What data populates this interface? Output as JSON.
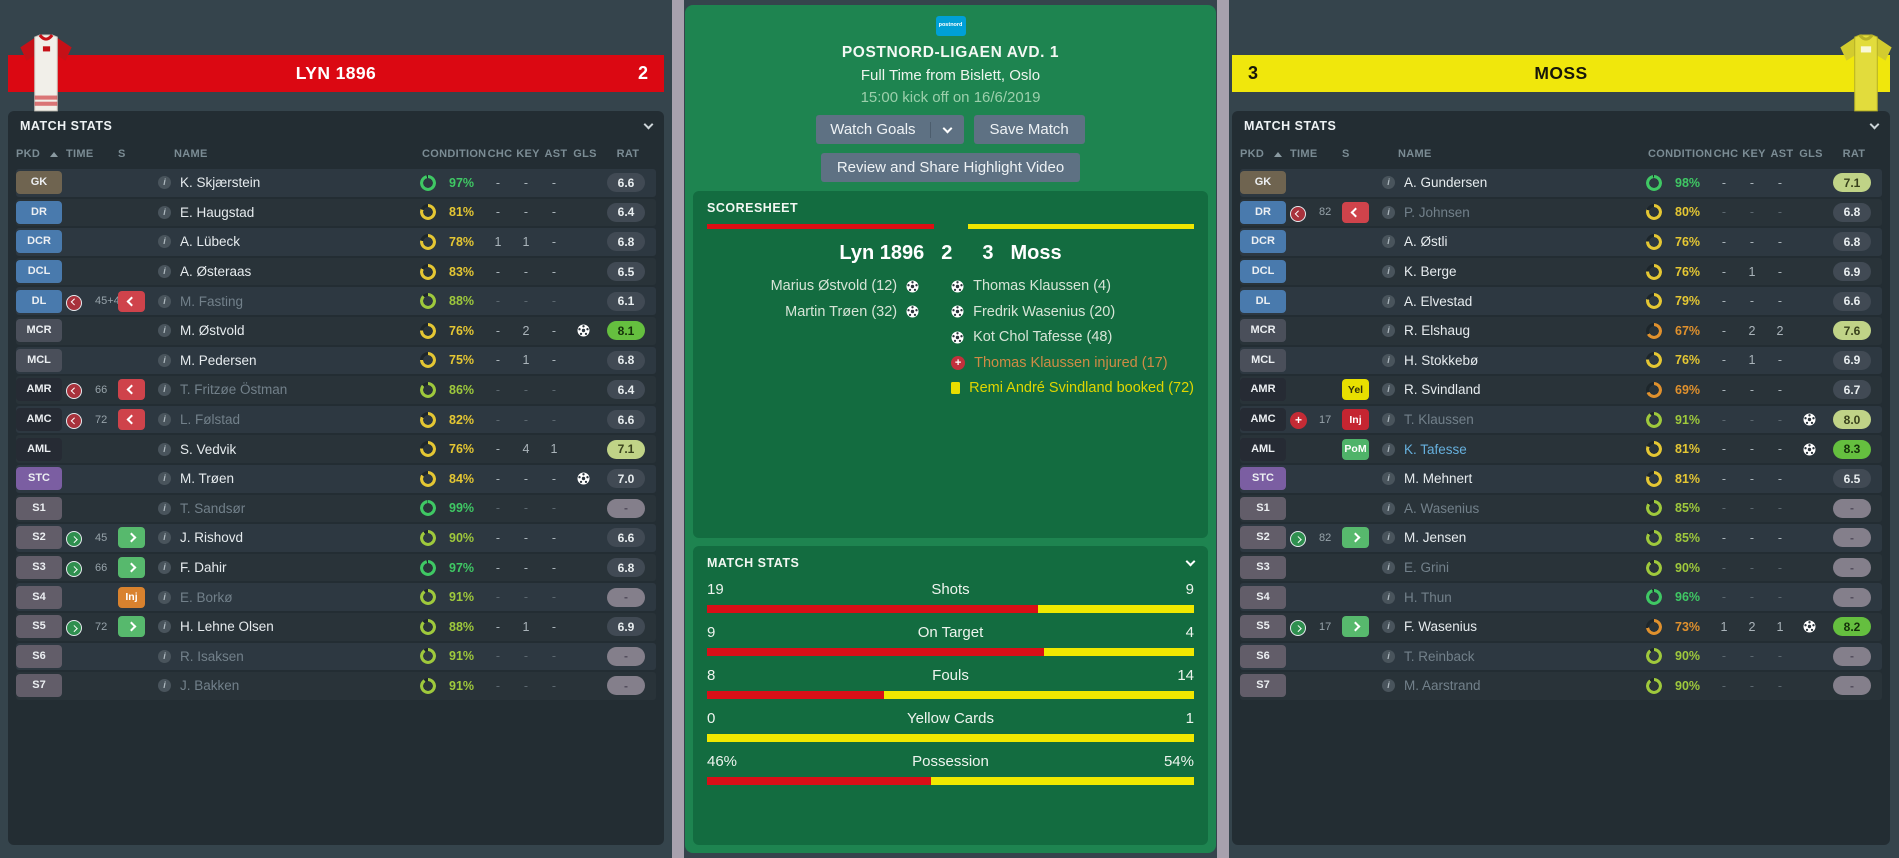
{
  "columns": [
    "PKD",
    "TIME",
    "S",
    "NAME",
    "CONDITION",
    "CHC",
    "KEY",
    "AST",
    "GLS",
    "RAT"
  ],
  "left_team": {
    "name": "LYN 1896",
    "score": "2",
    "panel_title": "MATCH STATS",
    "bar_color": "#db0812",
    "players": [
      {
        "pos": "GK",
        "posType": "gk",
        "time": "",
        "timeIcon": "",
        "sBadge": "",
        "name": "K. Skjærstein",
        "nameStyle": "n",
        "cond": 97,
        "condLevel": "green",
        "chc": "-",
        "key": "-",
        "ast": "-",
        "goal": false,
        "rating": "6.6",
        "ratingStyle": "gray"
      },
      {
        "pos": "DR",
        "posType": "d",
        "time": "",
        "timeIcon": "",
        "sBadge": "",
        "name": "E. Haugstad",
        "nameStyle": "n",
        "cond": 81,
        "condLevel": "yellow",
        "chc": "-",
        "key": "-",
        "ast": "-",
        "goal": false,
        "rating": "6.4",
        "ratingStyle": "gray"
      },
      {
        "pos": "DCR",
        "posType": "d",
        "time": "",
        "timeIcon": "",
        "sBadge": "",
        "name": "A. Lübeck",
        "nameStyle": "n",
        "cond": 78,
        "condLevel": "yellow",
        "chc": "1",
        "key": "1",
        "ast": "-",
        "goal": false,
        "rating": "6.8",
        "ratingStyle": "gray"
      },
      {
        "pos": "DCL",
        "posType": "d",
        "time": "",
        "timeIcon": "",
        "sBadge": "",
        "name": "A. Østeraas",
        "nameStyle": "n",
        "cond": 83,
        "condLevel": "yellow",
        "chc": "-",
        "key": "-",
        "ast": "-",
        "goal": false,
        "rating": "6.5",
        "ratingStyle": "gray"
      },
      {
        "pos": "DL",
        "posType": "d",
        "time": "45+4",
        "timeIcon": "off",
        "sBadge": "off",
        "name": "M. Fasting",
        "nameStyle": "f",
        "cond": 88,
        "condLevel": "yg",
        "chc": "-",
        "key": "-",
        "ast": "-",
        "goal": false,
        "rating": "6.1",
        "ratingStyle": "gray"
      },
      {
        "pos": "MCR",
        "posType": "m",
        "time": "",
        "timeIcon": "",
        "sBadge": "",
        "name": "M. Østvold",
        "nameStyle": "n",
        "cond": 76,
        "condLevel": "yellow",
        "chc": "-",
        "key": "2",
        "ast": "-",
        "goal": true,
        "rating": "8.1",
        "ratingStyle": "bright"
      },
      {
        "pos": "MCL",
        "posType": "m",
        "time": "",
        "timeIcon": "",
        "sBadge": "",
        "name": "M. Pedersen",
        "nameStyle": "n",
        "cond": 75,
        "condLevel": "yellow",
        "chc": "-",
        "key": "1",
        "ast": "-",
        "goal": false,
        "rating": "6.8",
        "ratingStyle": "gray"
      },
      {
        "pos": "AMR",
        "posType": "am",
        "time": "66",
        "timeIcon": "off",
        "sBadge": "off",
        "name": "T. Fritzøe Östman",
        "nameStyle": "f",
        "cond": 86,
        "condLevel": "yg",
        "chc": "-",
        "key": "-",
        "ast": "-",
        "goal": false,
        "rating": "6.4",
        "ratingStyle": "gray"
      },
      {
        "pos": "AMC",
        "posType": "am",
        "time": "72",
        "timeIcon": "off",
        "sBadge": "off",
        "name": "L. Følstad",
        "nameStyle": "f",
        "cond": 82,
        "condLevel": "yellow",
        "chc": "-",
        "key": "-",
        "ast": "-",
        "goal": false,
        "rating": "6.6",
        "ratingStyle": "gray"
      },
      {
        "pos": "AML",
        "posType": "am",
        "time": "",
        "timeIcon": "",
        "sBadge": "",
        "name": "S. Vedvik",
        "nameStyle": "n",
        "cond": 76,
        "condLevel": "yellow",
        "chc": "-",
        "key": "4",
        "ast": "1",
        "goal": false,
        "rating": "7.1",
        "ratingStyle": "pale"
      },
      {
        "pos": "STC",
        "posType": "st",
        "time": "",
        "timeIcon": "",
        "sBadge": "",
        "name": "M. Trøen",
        "nameStyle": "n",
        "cond": 84,
        "condLevel": "yellow",
        "chc": "-",
        "key": "-",
        "ast": "-",
        "goal": true,
        "rating": "7.0",
        "ratingStyle": "gray"
      },
      {
        "pos": "S1",
        "posType": "sub",
        "time": "",
        "timeIcon": "",
        "sBadge": "",
        "name": "T. Sandsør",
        "nameStyle": "f",
        "cond": 99,
        "condLevel": "green",
        "chc": "-",
        "key": "-",
        "ast": "-",
        "goal": false,
        "rating": "-",
        "ratingStyle": "none"
      },
      {
        "pos": "S2",
        "posType": "sub",
        "time": "45",
        "timeIcon": "on",
        "sBadge": "on",
        "name": "J. Rishovd",
        "nameStyle": "n",
        "cond": 90,
        "condLevel": "yg",
        "chc": "-",
        "key": "-",
        "ast": "-",
        "goal": false,
        "rating": "6.6",
        "ratingStyle": "gray"
      },
      {
        "pos": "S3",
        "posType": "sub",
        "time": "66",
        "timeIcon": "on",
        "sBadge": "on",
        "name": "F. Dahir",
        "nameStyle": "n",
        "cond": 97,
        "condLevel": "green",
        "chc": "-",
        "key": "-",
        "ast": "-",
        "goal": false,
        "rating": "6.8",
        "ratingStyle": "gray"
      },
      {
        "pos": "S4",
        "posType": "sub",
        "time": "",
        "timeIcon": "",
        "sBadge": "injO",
        "name": "E. Borkø",
        "nameStyle": "f",
        "cond": 91,
        "condLevel": "yg",
        "chc": "-",
        "key": "-",
        "ast": "-",
        "goal": false,
        "rating": "-",
        "ratingStyle": "none"
      },
      {
        "pos": "S5",
        "posType": "sub",
        "time": "72",
        "timeIcon": "on",
        "sBadge": "on",
        "name": "H. Lehne Olsen",
        "nameStyle": "n",
        "cond": 88,
        "condLevel": "yg",
        "chc": "-",
        "key": "1",
        "ast": "-",
        "goal": false,
        "rating": "6.9",
        "ratingStyle": "gray"
      },
      {
        "pos": "S6",
        "posType": "sub",
        "time": "",
        "timeIcon": "",
        "sBadge": "",
        "name": "R. Isaksen",
        "nameStyle": "f",
        "cond": 91,
        "condLevel": "yg",
        "chc": "-",
        "key": "-",
        "ast": "-",
        "goal": false,
        "rating": "-",
        "ratingStyle": "none"
      },
      {
        "pos": "S7",
        "posType": "sub",
        "time": "",
        "timeIcon": "",
        "sBadge": "",
        "name": "J. Bakken",
        "nameStyle": "f",
        "cond": 91,
        "condLevel": "yg",
        "chc": "-",
        "key": "-",
        "ast": "-",
        "goal": false,
        "rating": "-",
        "ratingStyle": "none"
      }
    ]
  },
  "right_team": {
    "name": "MOSS",
    "score": "3",
    "panel_title": "MATCH STATS",
    "bar_color": "#f0e70c",
    "players": [
      {
        "pos": "GK",
        "posType": "gk",
        "time": "",
        "timeIcon": "",
        "sBadge": "",
        "name": "A. Gundersen",
        "nameStyle": "n",
        "cond": 98,
        "condLevel": "green",
        "chc": "-",
        "key": "-",
        "ast": "-",
        "goal": false,
        "rating": "7.1",
        "ratingStyle": "pale"
      },
      {
        "pos": "DR",
        "posType": "d",
        "time": "82",
        "timeIcon": "off",
        "sBadge": "off",
        "name": "P. Johnsen",
        "nameStyle": "f",
        "cond": 80,
        "condLevel": "yellow",
        "chc": "-",
        "key": "-",
        "ast": "-",
        "goal": false,
        "rating": "6.8",
        "ratingStyle": "gray"
      },
      {
        "pos": "DCR",
        "posType": "d",
        "time": "",
        "timeIcon": "",
        "sBadge": "",
        "name": "A. Østli",
        "nameStyle": "n",
        "cond": 76,
        "condLevel": "yellow",
        "chc": "-",
        "key": "-",
        "ast": "-",
        "goal": false,
        "rating": "6.8",
        "ratingStyle": "gray"
      },
      {
        "pos": "DCL",
        "posType": "d",
        "time": "",
        "timeIcon": "",
        "sBadge": "",
        "name": "K. Berge",
        "nameStyle": "n",
        "cond": 76,
        "condLevel": "yellow",
        "chc": "-",
        "key": "1",
        "ast": "-",
        "goal": false,
        "rating": "6.9",
        "ratingStyle": "gray"
      },
      {
        "pos": "DL",
        "posType": "d",
        "time": "",
        "timeIcon": "",
        "sBadge": "",
        "name": "A. Elvestad",
        "nameStyle": "n",
        "cond": 79,
        "condLevel": "yellow",
        "chc": "-",
        "key": "-",
        "ast": "-",
        "goal": false,
        "rating": "6.6",
        "ratingStyle": "gray"
      },
      {
        "pos": "MCR",
        "posType": "m",
        "time": "",
        "timeIcon": "",
        "sBadge": "",
        "name": "R. Elshaug",
        "nameStyle": "n",
        "cond": 67,
        "condLevel": "orange",
        "chc": "-",
        "key": "2",
        "ast": "2",
        "goal": false,
        "rating": "7.6",
        "ratingStyle": "pale"
      },
      {
        "pos": "MCL",
        "posType": "m",
        "time": "",
        "timeIcon": "",
        "sBadge": "",
        "name": "H. Stokkebø",
        "nameStyle": "n",
        "cond": 76,
        "condLevel": "yellow",
        "chc": "-",
        "key": "1",
        "ast": "-",
        "goal": false,
        "rating": "6.9",
        "ratingStyle": "gray"
      },
      {
        "pos": "AMR",
        "posType": "am",
        "time": "",
        "timeIcon": "",
        "sBadge": "yel",
        "name": "R. Svindland",
        "nameStyle": "n",
        "cond": 69,
        "condLevel": "orange",
        "chc": "-",
        "key": "-",
        "ast": "-",
        "goal": false,
        "rating": "6.7",
        "ratingStyle": "gray"
      },
      {
        "pos": "AMC",
        "posType": "am",
        "time": "17",
        "timeIcon": "inj",
        "sBadge": "injR",
        "name": "T. Klaussen",
        "nameStyle": "f",
        "cond": 91,
        "condLevel": "yg",
        "chc": "-",
        "key": "-",
        "ast": "-",
        "goal": true,
        "rating": "8.0",
        "ratingStyle": "pale"
      },
      {
        "pos": "AML",
        "posType": "am",
        "time": "",
        "timeIcon": "",
        "sBadge": "pom",
        "name": "K. Tafesse",
        "nameStyle": "link",
        "cond": 81,
        "condLevel": "yellow",
        "chc": "-",
        "key": "-",
        "ast": "-",
        "goal": true,
        "rating": "8.3",
        "ratingStyle": "bright"
      },
      {
        "pos": "STC",
        "posType": "st",
        "time": "",
        "timeIcon": "",
        "sBadge": "",
        "name": "M. Mehnert",
        "nameStyle": "n",
        "cond": 81,
        "condLevel": "yellow",
        "chc": "-",
        "key": "-",
        "ast": "-",
        "goal": false,
        "rating": "6.5",
        "ratingStyle": "gray"
      },
      {
        "pos": "S1",
        "posType": "sub",
        "time": "",
        "timeIcon": "",
        "sBadge": "",
        "name": "A. Wasenius",
        "nameStyle": "f",
        "cond": 85,
        "condLevel": "yg",
        "chc": "-",
        "key": "-",
        "ast": "-",
        "goal": false,
        "rating": "-",
        "ratingStyle": "none"
      },
      {
        "pos": "S2",
        "posType": "sub",
        "time": "82",
        "timeIcon": "on",
        "sBadge": "on",
        "name": "M. Jensen",
        "nameStyle": "n",
        "cond": 85,
        "condLevel": "yg",
        "chc": "-",
        "key": "-",
        "ast": "-",
        "goal": false,
        "rating": "-",
        "ratingStyle": "none"
      },
      {
        "pos": "S3",
        "posType": "sub",
        "time": "",
        "timeIcon": "",
        "sBadge": "",
        "name": "E. Grini",
        "nameStyle": "f",
        "cond": 90,
        "condLevel": "yg",
        "chc": "-",
        "key": "-",
        "ast": "-",
        "goal": false,
        "rating": "-",
        "ratingStyle": "none"
      },
      {
        "pos": "S4",
        "posType": "sub",
        "time": "",
        "timeIcon": "",
        "sBadge": "",
        "name": "H. Thun",
        "nameStyle": "f",
        "cond": 96,
        "condLevel": "green",
        "chc": "-",
        "key": "-",
        "ast": "-",
        "goal": false,
        "rating": "-",
        "ratingStyle": "none"
      },
      {
        "pos": "S5",
        "posType": "sub",
        "time": "17",
        "timeIcon": "on",
        "sBadge": "on",
        "name": "F. Wasenius",
        "nameStyle": "n",
        "cond": 73,
        "condLevel": "orange",
        "chc": "1",
        "key": "2",
        "ast": "1",
        "goal": true,
        "rating": "8.2",
        "ratingStyle": "bright"
      },
      {
        "pos": "S6",
        "posType": "sub",
        "time": "",
        "timeIcon": "",
        "sBadge": "",
        "name": "T. Reinback",
        "nameStyle": "f",
        "cond": 90,
        "condLevel": "yg",
        "chc": "-",
        "key": "-",
        "ast": "-",
        "goal": false,
        "rating": "-",
        "ratingStyle": "none"
      },
      {
        "pos": "S7",
        "posType": "sub",
        "time": "",
        "timeIcon": "",
        "sBadge": "",
        "name": "M. Aarstrand",
        "nameStyle": "f",
        "cond": 90,
        "condLevel": "yg",
        "chc": "-",
        "key": "-",
        "ast": "-",
        "goal": false,
        "rating": "-",
        "ratingStyle": "none"
      }
    ]
  },
  "center": {
    "sponsor_logo": "postnord",
    "competition": "POSTNORD-LIGAEN AVD. 1",
    "status": "Full Time from Bislett, Oslo",
    "kickoff": "15:00 kick off on 16/6/2019",
    "buttons": {
      "watch_goals": "Watch Goals",
      "save_match": "Save Match",
      "review": "Review and Share Highlight Video"
    },
    "scoresheet": {
      "title": "SCORESHEET",
      "home_name": "Lyn 1896",
      "home_score": "2",
      "away_score": "3",
      "away_name": "Moss",
      "home_events": [
        {
          "text": "Marius Østvold (12)",
          "type": "goal"
        },
        {
          "text": "Martin Trøen (32)",
          "type": "goal"
        }
      ],
      "away_events": [
        {
          "text": "Thomas Klaussen (4)",
          "type": "goal"
        },
        {
          "text": "Fredrik Wasenius (20)",
          "type": "goal"
        },
        {
          "text": "Kot Chol Tafesse (48)",
          "type": "goal"
        },
        {
          "text": "Thomas Klaussen injured (17)",
          "type": "injury"
        },
        {
          "text": "Remi André Svindland booked (72)",
          "type": "booking"
        }
      ]
    },
    "match_stats": {
      "title": "MATCH STATS",
      "rows": [
        {
          "label": "Shots",
          "home": "19",
          "away": "9",
          "home_pct": 67.9
        },
        {
          "label": "On Target",
          "home": "9",
          "away": "4",
          "home_pct": 69.2
        },
        {
          "label": "Fouls",
          "home": "8",
          "away": "14",
          "home_pct": 36.4
        },
        {
          "label": "Yellow Cards",
          "home": "0",
          "away": "1",
          "home_pct": 0
        },
        {
          "label": "Possession",
          "home": "46%",
          "away": "54%",
          "home_pct": 46
        }
      ]
    }
  },
  "colors": {
    "home_bar": "#db0812",
    "away_bar": "#f0e70c",
    "stat_home": "#d90f17",
    "stat_away": "#f0e800",
    "cond_green": "#3fc864",
    "cond_yellow_green": "#9fc93c",
    "cond_yellow": "#e5c733",
    "cond_orange": "#e0912d"
  }
}
